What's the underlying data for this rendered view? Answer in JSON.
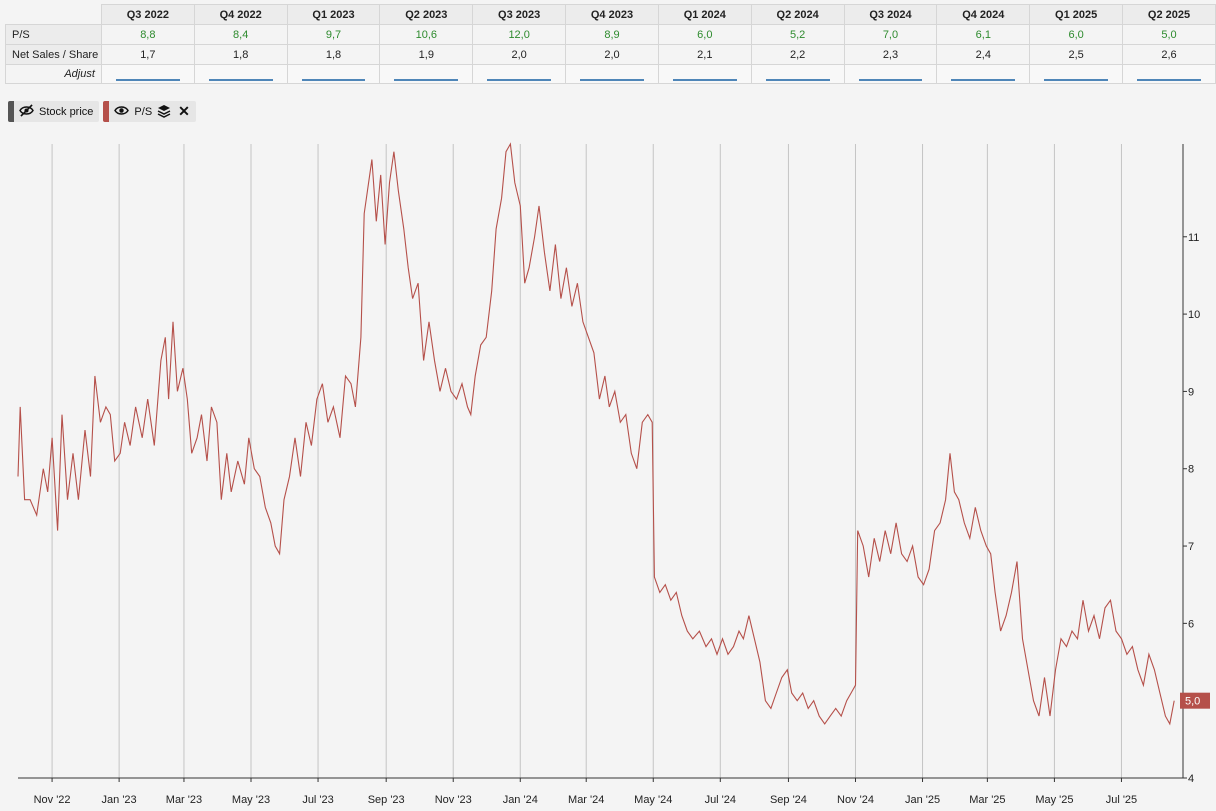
{
  "table": {
    "quarters": [
      "Q3 2022",
      "Q4 2022",
      "Q1 2023",
      "Q2 2023",
      "Q3 2023",
      "Q4 2023",
      "Q1 2024",
      "Q2 2024",
      "Q3 2024",
      "Q4 2024",
      "Q1 2025",
      "Q2 2025"
    ],
    "rows": [
      {
        "label": "P/S",
        "values": [
          "8,8",
          "8,4",
          "9,7",
          "10,6",
          "12,0",
          "8,9",
          "6,0",
          "5,2",
          "7,0",
          "6,1",
          "6,0",
          "5,0"
        ]
      },
      {
        "label": "Net Sales / Share",
        "values": [
          "1,7",
          "1,8",
          "1,8",
          "1,9",
          "2,0",
          "2,0",
          "2,1",
          "2,2",
          "2,3",
          "2,4",
          "2,5",
          "2,6"
        ]
      }
    ],
    "adjust_label": "Adjust"
  },
  "toolbar": {
    "stock_price": {
      "label": "Stock price",
      "color": "#555555",
      "icon": "eye-slash-icon",
      "visible": false
    },
    "ps": {
      "label": "P/S",
      "color": "#b5504a",
      "icon": "eye-icon",
      "layers_icon": "layers-icon",
      "close_icon": "close-icon"
    }
  },
  "chart_data": {
    "type": "line",
    "series": [
      {
        "name": "P/S",
        "color": "#b5504a",
        "points": [
          [
            "2022-10-01",
            7.9
          ],
          [
            "2022-10-03",
            8.8
          ],
          [
            "2022-10-07",
            7.6
          ],
          [
            "2022-10-12",
            7.6
          ],
          [
            "2022-10-18",
            7.4
          ],
          [
            "2022-10-24",
            8.0
          ],
          [
            "2022-10-28",
            7.7
          ],
          [
            "2022-11-01",
            8.4
          ],
          [
            "2022-11-06",
            7.2
          ],
          [
            "2022-11-10",
            8.7
          ],
          [
            "2022-11-15",
            7.6
          ],
          [
            "2022-11-20",
            8.2
          ],
          [
            "2022-11-25",
            7.6
          ],
          [
            "2022-12-01",
            8.5
          ],
          [
            "2022-12-06",
            7.9
          ],
          [
            "2022-12-10",
            9.2
          ],
          [
            "2022-12-15",
            8.6
          ],
          [
            "2022-12-20",
            8.8
          ],
          [
            "2022-12-24",
            8.7
          ],
          [
            "2022-12-28",
            8.1
          ],
          [
            "2023-01-02",
            8.2
          ],
          [
            "2023-01-06",
            8.6
          ],
          [
            "2023-01-11",
            8.3
          ],
          [
            "2023-01-16",
            8.8
          ],
          [
            "2023-01-22",
            8.4
          ],
          [
            "2023-01-27",
            8.9
          ],
          [
            "2023-02-02",
            8.3
          ],
          [
            "2023-02-08",
            9.4
          ],
          [
            "2023-02-12",
            9.7
          ],
          [
            "2023-02-15",
            8.9
          ],
          [
            "2023-02-19",
            9.9
          ],
          [
            "2023-02-23",
            9.0
          ],
          [
            "2023-02-28",
            9.3
          ],
          [
            "2023-03-04",
            8.9
          ],
          [
            "2023-03-08",
            8.2
          ],
          [
            "2023-03-13",
            8.4
          ],
          [
            "2023-03-17",
            8.7
          ],
          [
            "2023-03-22",
            8.1
          ],
          [
            "2023-03-26",
            8.8
          ],
          [
            "2023-03-31",
            8.6
          ],
          [
            "2023-04-04",
            7.6
          ],
          [
            "2023-04-09",
            8.2
          ],
          [
            "2023-04-13",
            7.7
          ],
          [
            "2023-04-19",
            8.1
          ],
          [
            "2023-04-25",
            7.8
          ],
          [
            "2023-04-29",
            8.4
          ],
          [
            "2023-05-04",
            8.0
          ],
          [
            "2023-05-09",
            7.9
          ],
          [
            "2023-05-14",
            7.5
          ],
          [
            "2023-05-19",
            7.3
          ],
          [
            "2023-05-23",
            7.0
          ],
          [
            "2023-05-27",
            6.9
          ],
          [
            "2023-05-31",
            7.6
          ],
          [
            "2023-06-05",
            7.9
          ],
          [
            "2023-06-10",
            8.4
          ],
          [
            "2023-06-15",
            7.9
          ],
          [
            "2023-06-20",
            8.6
          ],
          [
            "2023-06-25",
            8.3
          ],
          [
            "2023-06-30",
            8.9
          ],
          [
            "2023-07-05",
            9.1
          ],
          [
            "2023-07-10",
            8.6
          ],
          [
            "2023-07-15",
            8.8
          ],
          [
            "2023-07-21",
            8.4
          ],
          [
            "2023-07-26",
            9.2
          ],
          [
            "2023-07-31",
            9.1
          ],
          [
            "2023-08-04",
            8.8
          ],
          [
            "2023-08-09",
            9.7
          ],
          [
            "2023-08-12",
            11.3
          ],
          [
            "2023-08-15",
            11.6
          ],
          [
            "2023-08-19",
            12.0
          ],
          [
            "2023-08-23",
            11.2
          ],
          [
            "2023-08-27",
            11.8
          ],
          [
            "2023-08-31",
            10.9
          ],
          [
            "2023-09-04",
            11.7
          ],
          [
            "2023-09-08",
            12.1
          ],
          [
            "2023-09-12",
            11.6
          ],
          [
            "2023-09-17",
            11.1
          ],
          [
            "2023-09-21",
            10.6
          ],
          [
            "2023-09-25",
            10.2
          ],
          [
            "2023-09-30",
            10.4
          ],
          [
            "2023-10-05",
            9.4
          ],
          [
            "2023-10-10",
            9.9
          ],
          [
            "2023-10-15",
            9.4
          ],
          [
            "2023-10-20",
            9.0
          ],
          [
            "2023-10-25",
            9.3
          ],
          [
            "2023-10-30",
            9.0
          ],
          [
            "2023-11-04",
            8.9
          ],
          [
            "2023-11-09",
            9.1
          ],
          [
            "2023-11-14",
            8.8
          ],
          [
            "2023-11-17",
            8.7
          ],
          [
            "2023-11-21",
            9.2
          ],
          [
            "2023-11-26",
            9.6
          ],
          [
            "2023-12-01",
            9.7
          ],
          [
            "2023-12-06",
            10.3
          ],
          [
            "2023-12-10",
            11.1
          ],
          [
            "2023-12-15",
            11.5
          ],
          [
            "2023-12-19",
            12.1
          ],
          [
            "2023-12-23",
            12.2
          ],
          [
            "2023-12-27",
            11.7
          ],
          [
            "2024-01-01",
            11.4
          ],
          [
            "2024-01-05",
            10.4
          ],
          [
            "2024-01-09",
            10.6
          ],
          [
            "2024-01-14",
            11.0
          ],
          [
            "2024-01-18",
            11.4
          ],
          [
            "2024-01-23",
            10.8
          ],
          [
            "2024-01-28",
            10.3
          ],
          [
            "2024-02-02",
            10.9
          ],
          [
            "2024-02-07",
            10.2
          ],
          [
            "2024-02-12",
            10.6
          ],
          [
            "2024-02-17",
            10.1
          ],
          [
            "2024-02-22",
            10.4
          ],
          [
            "2024-02-27",
            9.9
          ],
          [
            "2024-03-03",
            9.7
          ],
          [
            "2024-03-08",
            9.5
          ],
          [
            "2024-03-13",
            8.9
          ],
          [
            "2024-03-18",
            9.2
          ],
          [
            "2024-03-22",
            8.8
          ],
          [
            "2024-03-27",
            9.0
          ],
          [
            "2024-04-01",
            8.6
          ],
          [
            "2024-04-06",
            8.7
          ],
          [
            "2024-04-11",
            8.2
          ],
          [
            "2024-04-16",
            8.0
          ],
          [
            "2024-04-21",
            8.6
          ],
          [
            "2024-04-26",
            8.7
          ],
          [
            "2024-04-30",
            8.6
          ],
          [
            "2024-05-02",
            6.6
          ],
          [
            "2024-05-07",
            6.4
          ],
          [
            "2024-05-12",
            6.5
          ],
          [
            "2024-05-17",
            6.3
          ],
          [
            "2024-05-22",
            6.4
          ],
          [
            "2024-05-27",
            6.1
          ],
          [
            "2024-06-01",
            5.9
          ],
          [
            "2024-06-06",
            5.8
          ],
          [
            "2024-06-12",
            5.9
          ],
          [
            "2024-06-18",
            5.7
          ],
          [
            "2024-06-23",
            5.8
          ],
          [
            "2024-06-28",
            5.6
          ],
          [
            "2024-07-03",
            5.8
          ],
          [
            "2024-07-08",
            5.6
          ],
          [
            "2024-07-13",
            5.7
          ],
          [
            "2024-07-18",
            5.9
          ],
          [
            "2024-07-22",
            5.8
          ],
          [
            "2024-07-27",
            6.1
          ],
          [
            "2024-08-01",
            5.8
          ],
          [
            "2024-08-06",
            5.5
          ],
          [
            "2024-08-11",
            5.0
          ],
          [
            "2024-08-16",
            4.9
          ],
          [
            "2024-08-21",
            5.1
          ],
          [
            "2024-08-26",
            5.3
          ],
          [
            "2024-08-31",
            5.4
          ],
          [
            "2024-09-04",
            5.1
          ],
          [
            "2024-09-09",
            5.0
          ],
          [
            "2024-09-14",
            5.1
          ],
          [
            "2024-09-19",
            4.9
          ],
          [
            "2024-09-24",
            5.0
          ],
          [
            "2024-09-29",
            4.8
          ],
          [
            "2024-10-04",
            4.7
          ],
          [
            "2024-10-09",
            4.8
          ],
          [
            "2024-10-14",
            4.9
          ],
          [
            "2024-10-19",
            4.8
          ],
          [
            "2024-10-24",
            5.0
          ],
          [
            "2024-10-28",
            5.1
          ],
          [
            "2024-11-01",
            5.2
          ],
          [
            "2024-11-03",
            7.2
          ],
          [
            "2024-11-08",
            7.0
          ],
          [
            "2024-11-13",
            6.6
          ],
          [
            "2024-11-18",
            7.1
          ],
          [
            "2024-11-23",
            6.8
          ],
          [
            "2024-11-28",
            7.2
          ],
          [
            "2024-12-03",
            6.9
          ],
          [
            "2024-12-08",
            7.3
          ],
          [
            "2024-12-13",
            6.9
          ],
          [
            "2024-12-18",
            6.8
          ],
          [
            "2024-12-23",
            7.0
          ],
          [
            "2024-12-28",
            6.6
          ],
          [
            "2025-01-02",
            6.5
          ],
          [
            "2025-01-07",
            6.7
          ],
          [
            "2025-01-12",
            7.2
          ],
          [
            "2025-01-17",
            7.3
          ],
          [
            "2025-01-22",
            7.6
          ],
          [
            "2025-01-26",
            8.2
          ],
          [
            "2025-01-30",
            7.7
          ],
          [
            "2025-02-03",
            7.6
          ],
          [
            "2025-02-08",
            7.3
          ],
          [
            "2025-02-13",
            7.1
          ],
          [
            "2025-02-18",
            7.5
          ],
          [
            "2025-02-23",
            7.2
          ],
          [
            "2025-02-28",
            7.0
          ],
          [
            "2025-03-04",
            6.9
          ],
          [
            "2025-03-08",
            6.4
          ],
          [
            "2025-03-13",
            5.9
          ],
          [
            "2025-03-18",
            6.1
          ],
          [
            "2025-03-23",
            6.4
          ],
          [
            "2025-03-28",
            6.8
          ],
          [
            "2025-04-02",
            5.8
          ],
          [
            "2025-04-07",
            5.4
          ],
          [
            "2025-04-12",
            5.0
          ],
          [
            "2025-04-17",
            4.8
          ],
          [
            "2025-04-22",
            5.3
          ],
          [
            "2025-04-27",
            4.8
          ],
          [
            "2025-05-02",
            5.4
          ],
          [
            "2025-05-07",
            5.8
          ],
          [
            "2025-05-12",
            5.7
          ],
          [
            "2025-05-17",
            5.9
          ],
          [
            "2025-05-22",
            5.8
          ],
          [
            "2025-05-27",
            6.3
          ],
          [
            "2025-06-01",
            5.9
          ],
          [
            "2025-06-06",
            6.1
          ],
          [
            "2025-06-11",
            5.8
          ],
          [
            "2025-06-16",
            6.2
          ],
          [
            "2025-06-21",
            6.3
          ],
          [
            "2025-06-26",
            5.9
          ],
          [
            "2025-07-01",
            5.8
          ],
          [
            "2025-07-06",
            5.6
          ],
          [
            "2025-07-11",
            5.7
          ],
          [
            "2025-07-16",
            5.4
          ],
          [
            "2025-07-21",
            5.2
          ],
          [
            "2025-07-26",
            5.6
          ],
          [
            "2025-07-31",
            5.4
          ],
          [
            "2025-08-05",
            5.1
          ],
          [
            "2025-08-10",
            4.8
          ],
          [
            "2025-08-14",
            4.7
          ],
          [
            "2025-08-18",
            5.0
          ]
        ]
      }
    ],
    "x_start": "2022-10-01",
    "x_end": "2025-08-26",
    "x_ticks": [
      {
        "date": "2022-11-01",
        "label": "Nov '22"
      },
      {
        "date": "2023-01-01",
        "label": "Jan '23"
      },
      {
        "date": "2023-03-01",
        "label": "Mar '23"
      },
      {
        "date": "2023-05-01",
        "label": "May '23"
      },
      {
        "date": "2023-07-01",
        "label": "Jul '23"
      },
      {
        "date": "2023-09-01",
        "label": "Sep '23"
      },
      {
        "date": "2023-11-01",
        "label": "Nov '23"
      },
      {
        "date": "2024-01-01",
        "label": "Jan '24"
      },
      {
        "date": "2024-03-01",
        "label": "Mar '24"
      },
      {
        "date": "2024-05-01",
        "label": "May '24"
      },
      {
        "date": "2024-07-01",
        "label": "Jul '24"
      },
      {
        "date": "2024-09-01",
        "label": "Sep '24"
      },
      {
        "date": "2024-11-01",
        "label": "Nov '24"
      },
      {
        "date": "2025-01-01",
        "label": "Jan '25"
      },
      {
        "date": "2025-03-01",
        "label": "Mar '25"
      },
      {
        "date": "2025-05-01",
        "label": "May '25"
      },
      {
        "date": "2025-07-01",
        "label": "Jul '25"
      }
    ],
    "ylim": [
      4,
      12.2
    ],
    "y_ticks": [
      4,
      5,
      6,
      7,
      8,
      9,
      10,
      11
    ],
    "y_tick_labels": [
      "4",
      "5",
      "6",
      "7",
      "8",
      "9",
      "10",
      "11"
    ],
    "last_value": 5.0,
    "last_value_label": "5,0",
    "vertical_grid": true,
    "horizontal_grid": false
  }
}
